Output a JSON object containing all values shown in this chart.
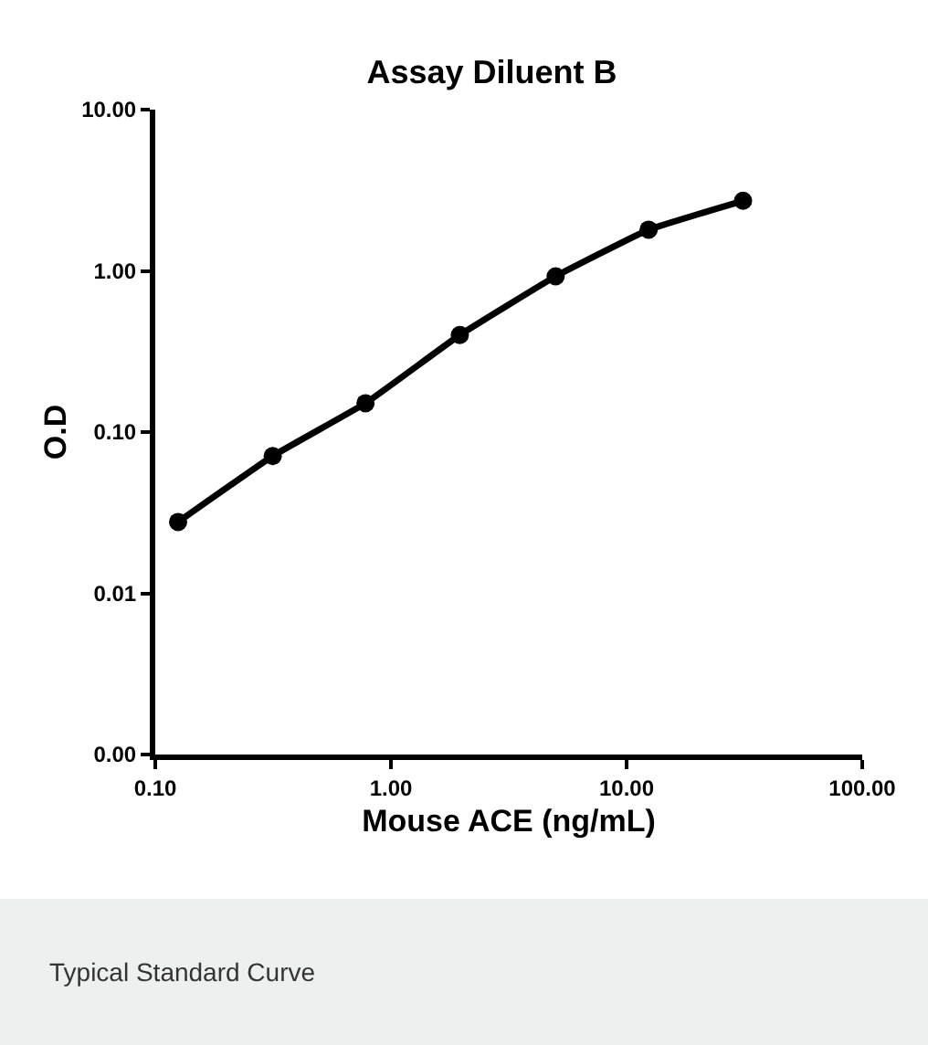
{
  "chart_data": {
    "type": "line",
    "title": "Assay Diluent B",
    "xlabel": "Mouse ACE (ng/mL)",
    "ylabel": "O.D",
    "x": [
      0.125,
      0.315,
      0.78,
      1.96,
      5.0,
      12.4,
      31.2
    ],
    "series": [
      {
        "color": "#000000",
        "values": [
          0.0277,
          0.071,
          0.151,
          0.4,
          0.925,
          1.8,
          2.72
        ]
      }
    ],
    "log": "xy",
    "xlim": [
      0.1,
      100
    ],
    "ylim": [
      0.001,
      10
    ],
    "xticks": [
      {
        "value": 0.1,
        "label": "0.10"
      },
      {
        "value": 1,
        "label": "1.00"
      },
      {
        "value": 10,
        "label": "10.00"
      },
      {
        "value": 100,
        "label": "100.00"
      }
    ],
    "yticks": [
      {
        "value": 0.001,
        "label": "0.00"
      },
      {
        "value": 0.01,
        "label": "0.01"
      },
      {
        "value": 0.1,
        "label": "0.10"
      },
      {
        "value": 1,
        "label": "1.00"
      },
      {
        "value": 10,
        "label": "10.00"
      }
    ],
    "marker": "circle",
    "line_style": "solid",
    "annotations": [
      "Typical Standard Curve"
    ]
  }
}
